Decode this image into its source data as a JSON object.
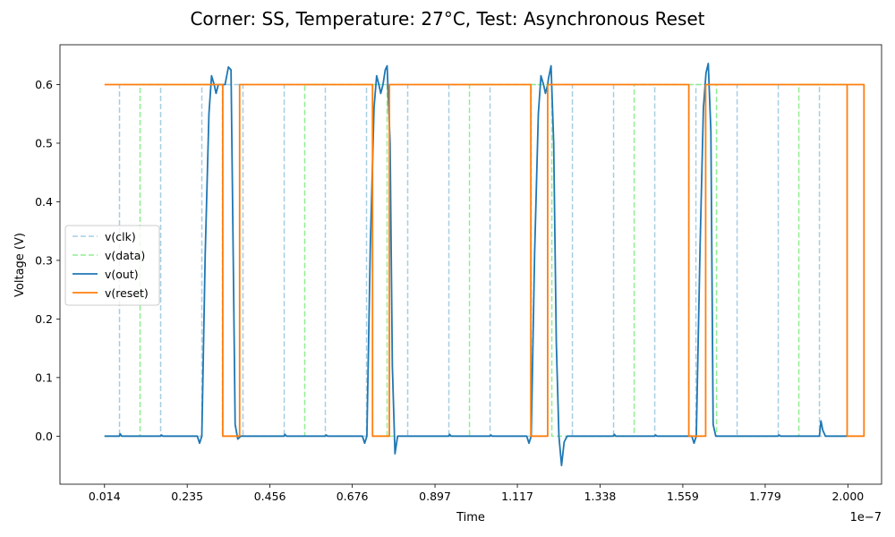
{
  "chart_data": {
    "type": "line",
    "title": "Corner: SS, Temperature: 27°C, Test: Asynchronous Reset",
    "xlabel": "Time",
    "ylabel": "Voltage (V)",
    "x_offset_label": "1e−7",
    "xlim": [
      -0.105,
      2.09
    ],
    "ylim": [
      -0.082,
      0.668
    ],
    "x_ticks": [
      0.014,
      0.235,
      0.456,
      0.676,
      0.897,
      1.117,
      1.338,
      1.559,
      1.779,
      2.0
    ],
    "x_tick_labels": [
      "0.014",
      "0.235",
      "0.456",
      "0.676",
      "0.897",
      "1.117",
      "1.338",
      "1.559",
      "1.779",
      "2.000"
    ],
    "y_ticks": [
      0.0,
      0.1,
      0.2,
      0.3,
      0.4,
      0.5,
      0.6
    ],
    "y_tick_labels": [
      "0.0",
      "0.1",
      "0.2",
      "0.3",
      "0.4",
      "0.5",
      "0.6"
    ],
    "grid": false,
    "legend_position": "center-left",
    "series": [
      {
        "name": "v(clk)",
        "color": "#a6cee3",
        "dash": "dashed",
        "points": [
          [
            0.014,
            0.0
          ],
          [
            0.054,
            0.0
          ],
          [
            0.054,
            0.6
          ],
          [
            0.054,
            0.6
          ],
          [
            0.164,
            0.6
          ],
          [
            0.164,
            0.0
          ],
          [
            0.274,
            0.0
          ],
          [
            0.274,
            0.6
          ],
          [
            0.384,
            0.6
          ],
          [
            0.384,
            0.0
          ],
          [
            0.494,
            0.0
          ],
          [
            0.494,
            0.6
          ],
          [
            0.604,
            0.6
          ],
          [
            0.604,
            0.0
          ],
          [
            0.714,
            0.0
          ],
          [
            0.714,
            0.6
          ],
          [
            0.824,
            0.6
          ],
          [
            0.824,
            0.0
          ],
          [
            0.934,
            0.0
          ],
          [
            0.934,
            0.6
          ],
          [
            1.044,
            0.6
          ],
          [
            1.044,
            0.0
          ],
          [
            1.154,
            0.0
          ],
          [
            1.154,
            0.6
          ],
          [
            1.264,
            0.6
          ],
          [
            1.264,
            0.0
          ],
          [
            1.374,
            0.0
          ],
          [
            1.374,
            0.6
          ],
          [
            1.484,
            0.6
          ],
          [
            1.484,
            0.0
          ],
          [
            1.594,
            0.0
          ],
          [
            1.594,
            0.6
          ],
          [
            1.704,
            0.6
          ],
          [
            1.704,
            0.0
          ],
          [
            1.814,
            0.0
          ],
          [
            1.814,
            0.6
          ],
          [
            1.924,
            0.6
          ],
          [
            1.924,
            0.0
          ],
          [
            2.0,
            0.0
          ]
        ]
      },
      {
        "name": "v(data)",
        "color": "#90ee90",
        "dash": "dashed",
        "points": [
          [
            0.014,
            0.0
          ],
          [
            0.109,
            0.0
          ],
          [
            0.109,
            0.6
          ],
          [
            0.329,
            0.6
          ],
          [
            0.329,
            0.0
          ],
          [
            0.549,
            0.0
          ],
          [
            0.549,
            0.6
          ],
          [
            0.769,
            0.6
          ],
          [
            0.769,
            0.0
          ],
          [
            0.989,
            0.0
          ],
          [
            0.989,
            0.6
          ],
          [
            1.209,
            0.6
          ],
          [
            1.209,
            0.0
          ],
          [
            1.429,
            0.0
          ],
          [
            1.429,
            0.6
          ],
          [
            1.649,
            0.6
          ],
          [
            1.649,
            0.0
          ],
          [
            1.869,
            0.0
          ],
          [
            1.869,
            0.6
          ],
          [
            2.0,
            0.6
          ]
        ]
      },
      {
        "name": "v(out)",
        "color": "#1f77b4",
        "dash": "solid",
        "points": [
          [
            0.014,
            0.0
          ],
          [
            0.054,
            0.0
          ],
          [
            0.056,
            0.004
          ],
          [
            0.06,
            0.0
          ],
          [
            0.164,
            0.0
          ],
          [
            0.166,
            0.002
          ],
          [
            0.17,
            0.0
          ],
          [
            0.262,
            0.0
          ],
          [
            0.268,
            -0.012
          ],
          [
            0.274,
            0.0
          ],
          [
            0.283,
            0.31
          ],
          [
            0.293,
            0.55
          ],
          [
            0.3,
            0.615
          ],
          [
            0.307,
            0.6
          ],
          [
            0.312,
            0.585
          ],
          [
            0.318,
            0.6
          ],
          [
            0.336,
            0.6
          ],
          [
            0.345,
            0.63
          ],
          [
            0.352,
            0.625
          ],
          [
            0.358,
            0.3
          ],
          [
            0.363,
            0.02
          ],
          [
            0.37,
            -0.005
          ],
          [
            0.378,
            0.0
          ],
          [
            0.494,
            0.0
          ],
          [
            0.496,
            0.003
          ],
          [
            0.5,
            0.0
          ],
          [
            0.604,
            0.0
          ],
          [
            0.606,
            0.002
          ],
          [
            0.61,
            0.0
          ],
          [
            0.703,
            0.0
          ],
          [
            0.709,
            -0.012
          ],
          [
            0.715,
            0.0
          ],
          [
            0.724,
            0.32
          ],
          [
            0.734,
            0.56
          ],
          [
            0.741,
            0.615
          ],
          [
            0.747,
            0.6
          ],
          [
            0.752,
            0.585
          ],
          [
            0.758,
            0.6
          ],
          [
            0.764,
            0.625
          ],
          [
            0.769,
            0.632
          ],
          [
            0.777,
            0.5
          ],
          [
            0.783,
            0.12
          ],
          [
            0.79,
            -0.03
          ],
          [
            0.797,
            0.0
          ],
          [
            0.934,
            0.0
          ],
          [
            0.936,
            0.003
          ],
          [
            0.94,
            0.0
          ],
          [
            1.044,
            0.0
          ],
          [
            1.046,
            0.002
          ],
          [
            1.05,
            0.0
          ],
          [
            1.142,
            0.0
          ],
          [
            1.148,
            -0.012
          ],
          [
            1.154,
            0.0
          ],
          [
            1.163,
            0.31
          ],
          [
            1.173,
            0.55
          ],
          [
            1.18,
            0.615
          ],
          [
            1.187,
            0.6
          ],
          [
            1.192,
            0.585
          ],
          [
            1.198,
            0.6
          ],
          [
            1.2,
            0.61
          ],
          [
            1.207,
            0.632
          ],
          [
            1.214,
            0.5
          ],
          [
            1.221,
            0.16
          ],
          [
            1.228,
            0.0
          ],
          [
            1.235,
            -0.05
          ],
          [
            1.242,
            -0.01
          ],
          [
            1.25,
            0.0
          ],
          [
            1.374,
            0.0
          ],
          [
            1.376,
            0.003
          ],
          [
            1.38,
            0.0
          ],
          [
            1.484,
            0.0
          ],
          [
            1.486,
            0.002
          ],
          [
            1.49,
            0.0
          ],
          [
            1.583,
            0.0
          ],
          [
            1.589,
            -0.012
          ],
          [
            1.595,
            0.0
          ],
          [
            1.605,
            0.32
          ],
          [
            1.614,
            0.56
          ],
          [
            1.621,
            0.62
          ],
          [
            1.627,
            0.636
          ],
          [
            1.634,
            0.52
          ],
          [
            1.64,
            0.02
          ],
          [
            1.647,
            0.0
          ],
          [
            1.814,
            0.0
          ],
          [
            1.816,
            0.002
          ],
          [
            1.82,
            0.0
          ],
          [
            1.924,
            0.0
          ],
          [
            1.928,
            0.026
          ],
          [
            1.933,
            0.01
          ],
          [
            1.94,
            0.0
          ],
          [
            1.962,
            0.0
          ],
          [
            2.0,
            0.0
          ]
        ]
      },
      {
        "name": "v(reset)",
        "color": "#ff7f0e",
        "dash": "solid",
        "points": [
          [
            0.014,
            0.6
          ],
          [
            0.33,
            0.6
          ],
          [
            0.33,
            0.0
          ],
          [
            0.375,
            0.0
          ],
          [
            0.375,
            0.6
          ],
          [
            0.73,
            0.6
          ],
          [
            0.73,
            0.0
          ],
          [
            0.775,
            0.0
          ],
          [
            0.775,
            0.6
          ],
          [
            1.153,
            0.6
          ],
          [
            1.153,
            0.0
          ],
          [
            1.198,
            0.0
          ],
          [
            1.198,
            0.6
          ],
          [
            1.575,
            0.6
          ],
          [
            1.575,
            0.0
          ],
          [
            1.62,
            0.0
          ],
          [
            1.62,
            0.6
          ],
          [
            1.998,
            0.6
          ],
          [
            1.998,
            0.0
          ],
          [
            2.043,
            0.0
          ],
          [
            2.043,
            0.6
          ],
          [
            2.0,
            0.6
          ]
        ]
      }
    ]
  }
}
